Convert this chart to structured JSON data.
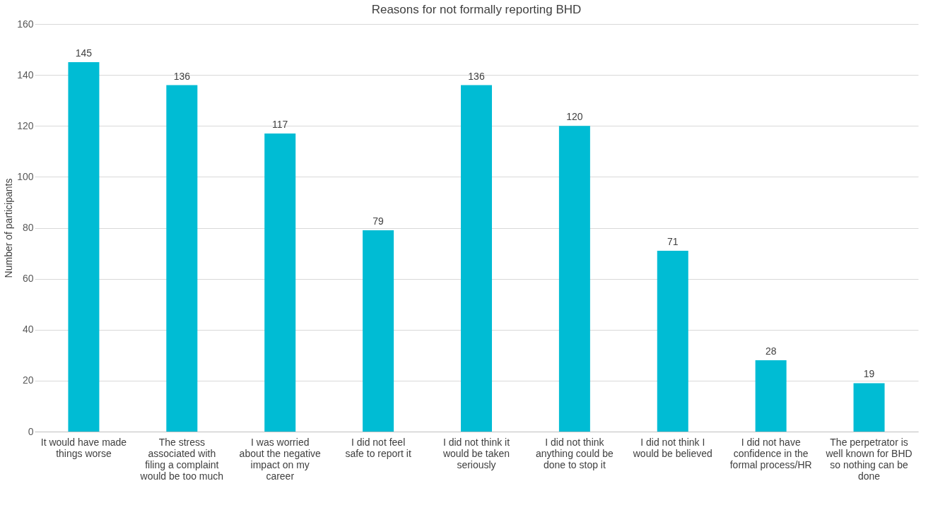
{
  "chart_data": {
    "type": "bar",
    "title": "Reasons for not formally reporting BHD",
    "ylabel": "Number of participants",
    "categories": [
      "It would have made things worse",
      "The stress associated with filing a complaint would be too much",
      "I was worried about the negative impact on my career",
      "I did not feel safe to report it",
      "I did not think it would be taken seriously",
      "I did not think anything could be done to stop it",
      "I did not think I would be believed",
      "I did not have confidence in the formal process/HR",
      "The perpetrator is well known for BHD so nothing can be done"
    ],
    "values": [
      145,
      136,
      117,
      79,
      136,
      120,
      71,
      28,
      19
    ],
    "color": "#00bcd4",
    "ylim": [
      0,
      160
    ],
    "yticks": [
      0,
      20,
      40,
      60,
      80,
      100,
      120,
      140,
      160
    ],
    "grid": "y",
    "data_labels": true
  }
}
